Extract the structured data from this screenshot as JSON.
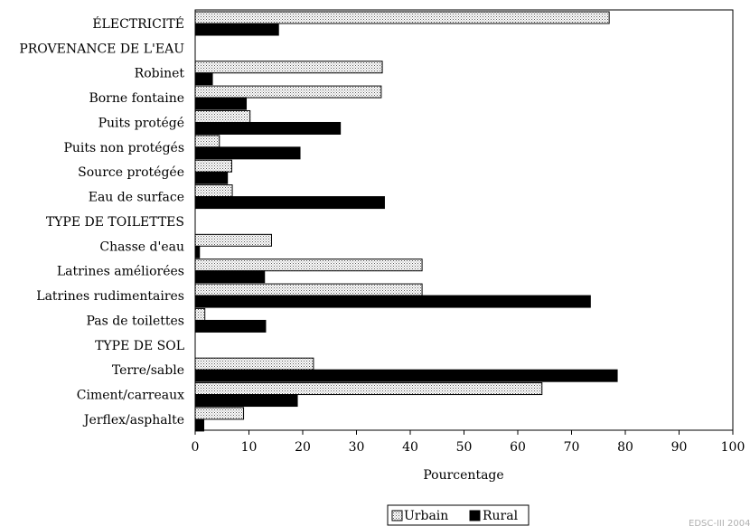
{
  "chart_data": {
    "type": "bar",
    "orientation": "horizontal",
    "rows": [
      {
        "label": "ÉLECTRICITÉ",
        "kind": "category",
        "urbain": 77.0,
        "rural": 15.5
      },
      {
        "label": "PROVENANCE DE L'EAU",
        "kind": "heading"
      },
      {
        "label": "Robinet",
        "kind": "category",
        "urbain": 34.8,
        "rural": 3.2
      },
      {
        "label": "Borne fontaine",
        "kind": "category",
        "urbain": 34.6,
        "rural": 9.5
      },
      {
        "label": "Puits protégé",
        "kind": "category",
        "urbain": 10.2,
        "rural": 27.0
      },
      {
        "label": "Puits non protégés",
        "kind": "category",
        "urbain": 4.5,
        "rural": 19.5
      },
      {
        "label": "Source protégée",
        "kind": "category",
        "urbain": 6.8,
        "rural": 6.0
      },
      {
        "label": "Eau de surface",
        "kind": "category",
        "urbain": 6.9,
        "rural": 35.2
      },
      {
        "label": "TYPE DE TOILETTES",
        "kind": "heading"
      },
      {
        "label": "Chasse d'eau",
        "kind": "category",
        "urbain": 14.2,
        "rural": 0.8
      },
      {
        "label": "Latrines améliorées",
        "kind": "category",
        "urbain": 42.2,
        "rural": 12.9
      },
      {
        "label": "Latrines rudimentaires",
        "kind": "category",
        "urbain": 42.2,
        "rural": 73.5
      },
      {
        "label": "Pas de toilettes",
        "kind": "category",
        "urbain": 1.8,
        "rural": 13.1
      },
      {
        "label": "TYPE DE SOL",
        "kind": "heading"
      },
      {
        "label": "Terre/sable",
        "kind": "category",
        "urbain": 22.0,
        "rural": 78.5
      },
      {
        "label": "Ciment/carreaux",
        "kind": "category",
        "urbain": 64.5,
        "rural": 19.0
      },
      {
        "label": "Jerflex/asphalte",
        "kind": "category",
        "urbain": 9.0,
        "rural": 1.6
      }
    ],
    "series": [
      {
        "name": "Urbain",
        "key": "urbain",
        "color": "#d8d8d8",
        "pattern": "dotted"
      },
      {
        "name": "Rural",
        "key": "rural",
        "color": "#000000",
        "pattern": "solid"
      }
    ],
    "xlim": [
      0,
      100
    ],
    "xticks": [
      0,
      10,
      20,
      30,
      40,
      50,
      60,
      70,
      80,
      90,
      100
    ],
    "xlabel": "Pourcentage",
    "ylabel": "",
    "title": "",
    "grid": false,
    "legend_position": "bottom-center"
  },
  "watermark": "EDSC-III 2004"
}
